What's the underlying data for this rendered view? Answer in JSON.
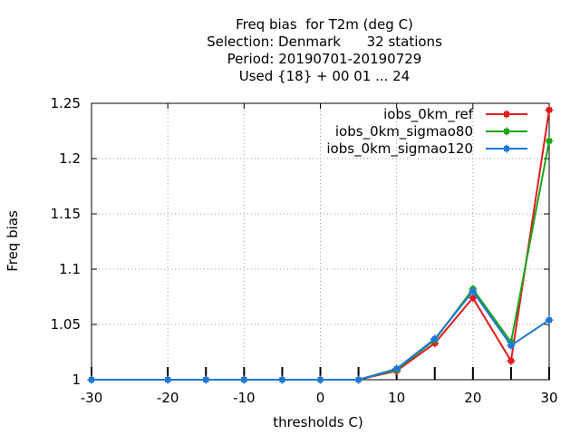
{
  "chart_data": {
    "type": "line",
    "title_lines": [
      "Freq bias  for T2m (deg C)",
      "Selection: Denmark      32 stations",
      "Period: 20190701-20190729",
      "Used {18} + 00 01 ... 24"
    ],
    "xlabel": "thresholds C)",
    "ylabel": "Freq bias",
    "xlim": [
      -30,
      30
    ],
    "ylim": [
      1,
      1.25
    ],
    "x_ticks": [
      -30,
      -20,
      -10,
      0,
      10,
      20,
      30
    ],
    "y_ticks": [
      1,
      1.05,
      1.1,
      1.15,
      1.2,
      1.25
    ],
    "y_tick_labels": [
      "1",
      "1.05",
      "1.1",
      "1.15",
      "1.2",
      "1.25"
    ],
    "grid": true,
    "legend_position": "top-right",
    "x": [
      -30,
      -20,
      -15,
      -10,
      -5,
      0,
      5,
      10,
      15,
      20,
      25,
      30
    ],
    "series": [
      {
        "name": "iobs_0km_ref",
        "color": "#e41a1c",
        "values": [
          1.0,
          1.0,
          1.0,
          1.0,
          1.0,
          1.0,
          1.0,
          1.008,
          1.033,
          1.074,
          1.017,
          1.244
        ]
      },
      {
        "name": "iobs_0km_sigmao80",
        "color": "#1aa51a",
        "values": [
          1.0,
          1.0,
          1.0,
          1.0,
          1.0,
          1.0,
          1.0,
          1.009,
          1.036,
          1.082,
          1.034,
          1.216
        ]
      },
      {
        "name": "iobs_0km_sigmao120",
        "color": "#1f78d8",
        "values": [
          1.0,
          1.0,
          1.0,
          1.0,
          1.0,
          1.0,
          1.0,
          1.01,
          1.037,
          1.08,
          1.031,
          1.054
        ]
      }
    ]
  }
}
